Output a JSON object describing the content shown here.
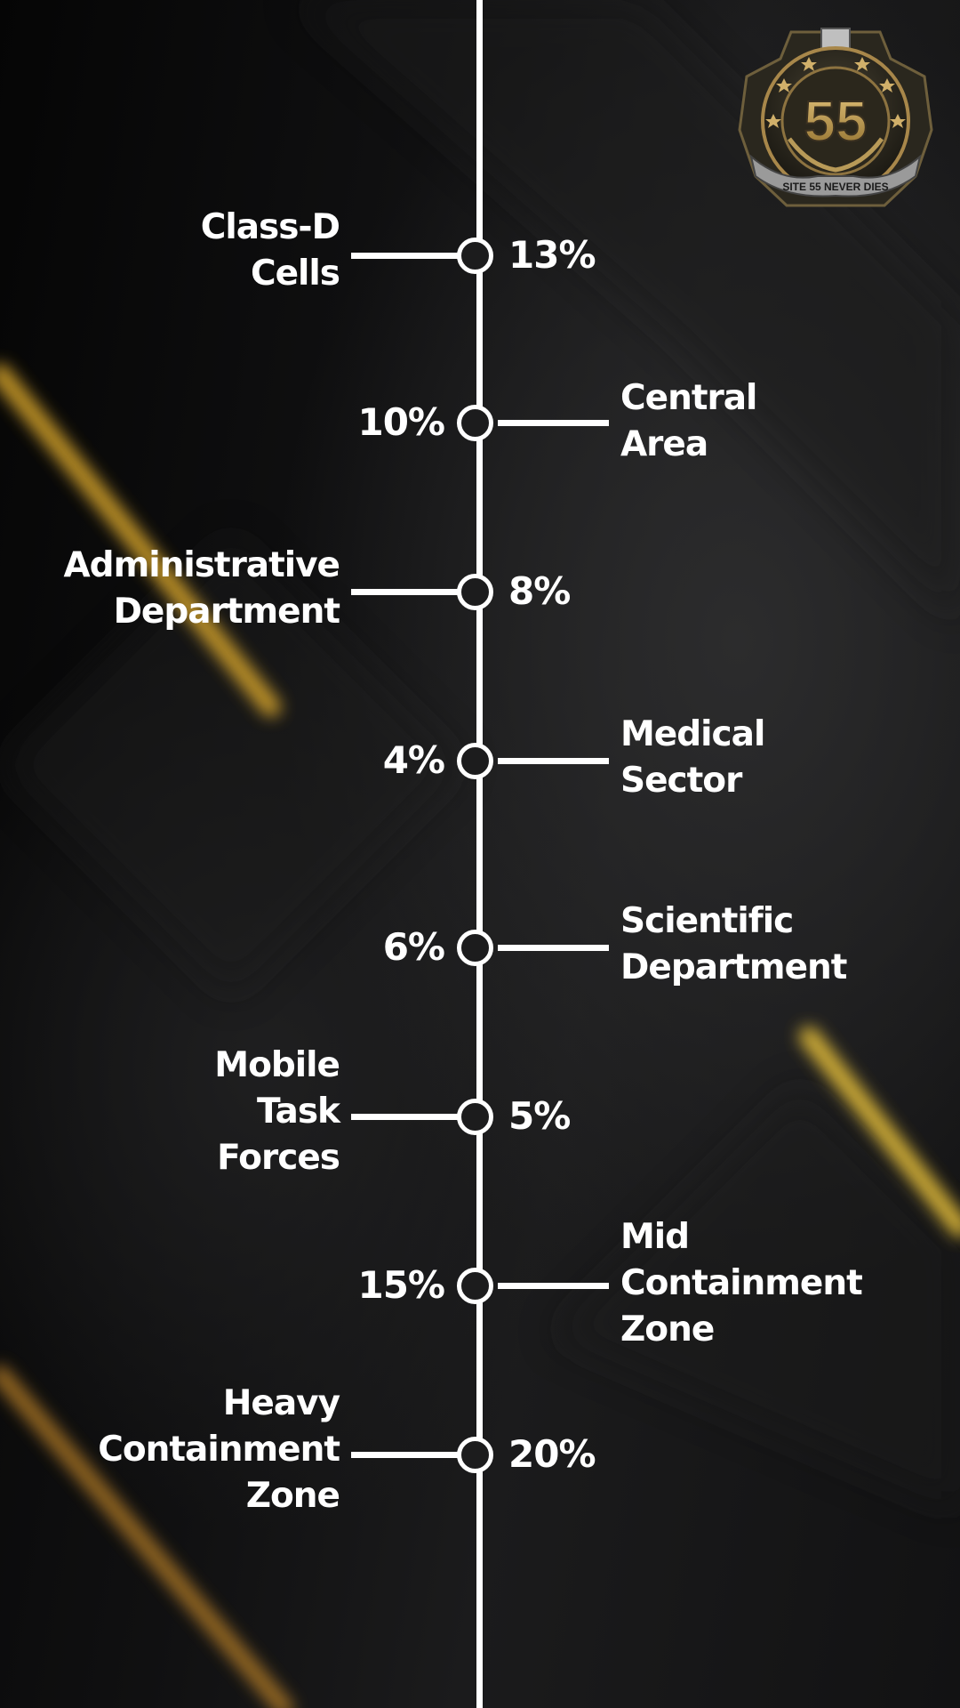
{
  "chart_data": {
    "type": "timeline",
    "items": [
      {
        "label": "Class-D\nCells",
        "value": "13%",
        "side": "left"
      },
      {
        "label": "Central\nArea",
        "value": "10%",
        "side": "right"
      },
      {
        "label": "Administrative\nDepartment",
        "value": "8%",
        "side": "left"
      },
      {
        "label": "Medical\nSector",
        "value": "4%",
        "side": "right"
      },
      {
        "label": "Scientific\nDepartment",
        "value": "6%",
        "side": "right"
      },
      {
        "label": "Mobile\nTask\nForces",
        "value": "5%",
        "side": "left"
      },
      {
        "label": "Mid\nContainment\nZone",
        "value": "15%",
        "side": "right"
      },
      {
        "label": "Heavy\nContainment\nZone",
        "value": "20%",
        "side": "left"
      }
    ]
  },
  "logo": {
    "number": "55",
    "motto": "SITE 55 NEVER DIES",
    "colors": {
      "gold": "#b8954a",
      "dark": "#1c1a14",
      "silver": "#c9c9c9"
    }
  },
  "colors": {
    "accent": "#e8b030",
    "line": "#ffffff",
    "background": "#141415"
  }
}
